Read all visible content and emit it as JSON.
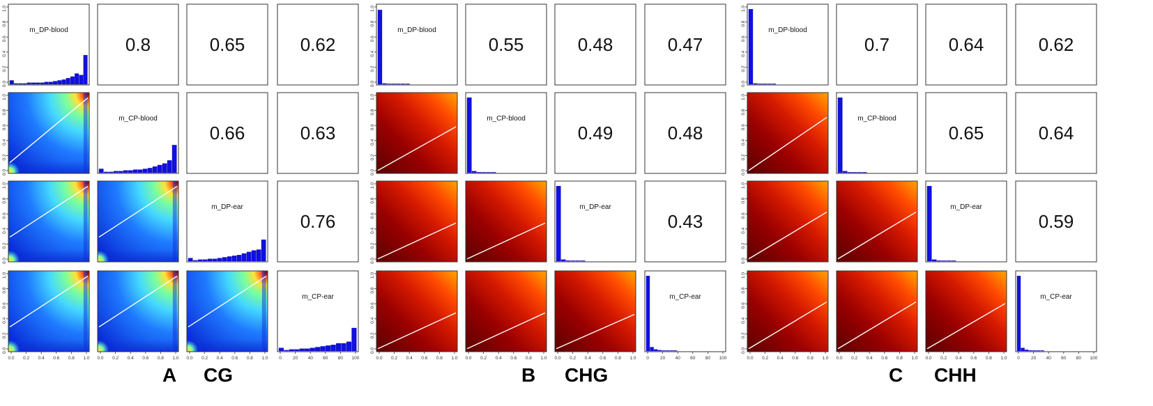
{
  "figure_caption_panels": [
    {
      "letter": "A",
      "context": "CG"
    },
    {
      "letter": "B",
      "context": "CHG"
    },
    {
      "letter": "C",
      "context": "CHH"
    }
  ],
  "chart_data": [
    {
      "type": "pairs-matrix",
      "panel": "A",
      "context": "CG",
      "variables": [
        "m_DP-blood",
        "m_CP-blood",
        "m_DP-ear",
        "m_CP-ear"
      ],
      "correlations": [
        [
          "",
          "0.8",
          "0.65",
          "0.62"
        ],
        [
          "",
          "",
          "0.66",
          "0.63"
        ],
        [
          "",
          "",
          "",
          "0.76"
        ],
        [
          "",
          "",
          "",
          ""
        ]
      ],
      "lower_panel": "density-scatter",
      "density_palette": [
        "#0a2dd8",
        "#1f7bff",
        "#45d8ff",
        "#7dff9a",
        "#ffe23a",
        "#ff5a1a",
        "#8a0000"
      ],
      "fit_lines": {
        "1-0": [
          0.12,
          0.95
        ],
        "2-0": [
          0.3,
          0.95
        ],
        "2-1": [
          0.3,
          0.95
        ],
        "3-0": [
          0.3,
          0.95
        ],
        "3-1": [
          0.3,
          0.95
        ],
        "3-2": [
          0.3,
          0.95
        ]
      },
      "histograms": {
        "m_DP-blood": [
          0.05,
          0.01,
          0.01,
          0.01,
          0.02,
          0.02,
          0.02,
          0.02,
          0.03,
          0.03,
          0.04,
          0.05,
          0.06,
          0.08,
          0.1,
          0.14,
          0.12,
          0.38
        ],
        "m_CP-blood": [
          0.05,
          0.01,
          0.01,
          0.02,
          0.02,
          0.03,
          0.03,
          0.04,
          0.04,
          0.05,
          0.06,
          0.08,
          0.1,
          0.12,
          0.16,
          0.36
        ],
        "m_DP-ear": [
          0.04,
          0.01,
          0.02,
          0.02,
          0.03,
          0.03,
          0.04,
          0.05,
          0.06,
          0.07,
          0.08,
          0.1,
          0.12,
          0.14,
          0.15,
          0.28
        ],
        "m_CP-ear": [
          0.04,
          0.01,
          0.02,
          0.02,
          0.03,
          0.03,
          0.04,
          0.05,
          0.06,
          0.07,
          0.08,
          0.1,
          0.1,
          0.12,
          0.3
        ]
      },
      "axis_ticks_unit": [
        "0.0",
        "0.2",
        "0.4",
        "0.6",
        "0.8",
        "1.0"
      ],
      "axis_ticks_last": [
        "0",
        "20",
        "40",
        "60",
        "80",
        "100"
      ]
    },
    {
      "type": "pairs-matrix",
      "panel": "B",
      "context": "CHG",
      "variables": [
        "m_DP-blood",
        "m_CP-blood",
        "m_DP-ear",
        "m_CP-ear"
      ],
      "correlations": [
        [
          "",
          "0.55",
          "0.48",
          "0.47"
        ],
        [
          "",
          "",
          "0.49",
          "0.48"
        ],
        [
          "",
          "",
          "",
          "0.43"
        ],
        [
          "",
          "",
          "",
          ""
        ]
      ],
      "lower_panel": "density-scatter",
      "density_palette": [
        "#5a0000",
        "#9a0000",
        "#d51a00",
        "#ff4a00",
        "#ff7a00",
        "#ffa600"
      ],
      "fit_lines": {
        "1-0": [
          0.02,
          0.58
        ],
        "2-0": [
          0.02,
          0.48
        ],
        "2-1": [
          0.02,
          0.48
        ],
        "3-0": [
          0.02,
          0.48
        ],
        "3-1": [
          0.02,
          0.48
        ],
        "3-2": [
          0.02,
          0.46
        ]
      },
      "histograms": {
        "m_DP-blood": [
          0.97,
          0.01,
          0.004,
          0.002,
          0.001,
          0.001,
          0.001,
          0,
          0,
          0,
          0,
          0,
          0,
          0,
          0,
          0,
          0
        ],
        "m_CP-blood": [
          0.98,
          0.02,
          0.006,
          0.002,
          0.001,
          0.001,
          0,
          0,
          0,
          0,
          0,
          0,
          0,
          0,
          0,
          0
        ],
        "m_DP-ear": [
          0.98,
          0.02,
          0.006,
          0.002,
          0.001,
          0.001,
          0,
          0,
          0,
          0,
          0,
          0,
          0,
          0,
          0,
          0
        ],
        "m_CP-ear": [
          0.98,
          0.05,
          0.02,
          0.01,
          0.005,
          0.002,
          0.001,
          0.001,
          0,
          0,
          0,
          0,
          0,
          0,
          0,
          0,
          0,
          0,
          0,
          0
        ]
      },
      "axis_ticks_unit": [
        "0.0",
        "0.2",
        "0.4",
        "0.6",
        "0.8",
        "1.0"
      ],
      "axis_ticks_last": [
        "0",
        "20",
        "40",
        "60",
        "80",
        "100"
      ]
    },
    {
      "type": "pairs-matrix",
      "panel": "C",
      "context": "CHH",
      "variables": [
        "m_DP-blood",
        "m_CP-blood",
        "m_DP-ear",
        "m_CP-ear"
      ],
      "correlations": [
        [
          "",
          "0.7",
          "0.64",
          "0.62"
        ],
        [
          "",
          "",
          "0.65",
          "0.64"
        ],
        [
          "",
          "",
          "",
          "0.59"
        ],
        [
          "",
          "",
          "",
          ""
        ]
      ],
      "lower_panel": "density-scatter",
      "density_palette": [
        "#5a0000",
        "#9a0000",
        "#d51a00",
        "#ff4a00",
        "#ff7a00",
        "#ffa600"
      ],
      "fit_lines": {
        "1-0": [
          0.02,
          0.7
        ],
        "2-0": [
          0.02,
          0.62
        ],
        "2-1": [
          0.02,
          0.62
        ],
        "3-0": [
          0.02,
          0.62
        ],
        "3-1": [
          0.02,
          0.62
        ],
        "3-2": [
          0.02,
          0.6
        ]
      },
      "histograms": {
        "m_DP-blood": [
          0.98,
          0.01,
          0.005,
          0.002,
          0.001,
          0.001,
          0,
          0,
          0,
          0,
          0,
          0,
          0,
          0,
          0,
          0,
          0
        ],
        "m_CP-blood": [
          0.98,
          0.02,
          0.006,
          0.002,
          0.001,
          0.001,
          0,
          0,
          0,
          0,
          0,
          0,
          0,
          0,
          0,
          0
        ],
        "m_DP-ear": [
          0.98,
          0.02,
          0.006,
          0.002,
          0.001,
          0.001,
          0,
          0,
          0,
          0,
          0,
          0,
          0,
          0,
          0,
          0
        ],
        "m_CP-ear": [
          0.98,
          0.04,
          0.015,
          0.006,
          0.003,
          0.002,
          0.001,
          0,
          0,
          0,
          0,
          0,
          0,
          0,
          0,
          0,
          0,
          0,
          0,
          0
        ]
      },
      "axis_ticks_unit": [
        "0.0",
        "0.2",
        "0.4",
        "0.6",
        "0.8",
        "1.0"
      ],
      "axis_ticks_last": [
        "0",
        "20",
        "40",
        "60",
        "80",
        "100"
      ]
    }
  ]
}
